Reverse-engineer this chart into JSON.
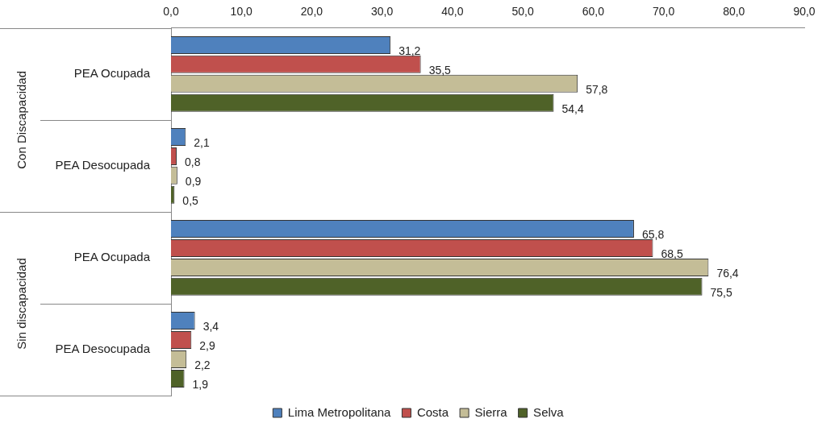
{
  "chart_data": {
    "type": "bar",
    "orientation": "horizontal",
    "categories": [
      "PEA Ocupada",
      "PEA Desocupada",
      "PEA Ocupada",
      "PEA Desocupada"
    ],
    "series": [
      {
        "name": "Lima Metropolitana",
        "color": "#4f81bd",
        "values": [
          31.2,
          2.1,
          65.8,
          3.4
        ],
        "value_labels": [
          "31,2",
          "2,1",
          "65,8",
          "3,4"
        ]
      },
      {
        "name": "Costa",
        "color": "#c0504d",
        "values": [
          35.5,
          0.8,
          68.5,
          2.9
        ],
        "value_labels": [
          "35,5",
          "0,8",
          "68,5",
          "2,9"
        ]
      },
      {
        "name": "Sierra",
        "color": "#c4bd97",
        "values": [
          57.8,
          0.9,
          76.4,
          2.2
        ],
        "value_labels": [
          "57,8",
          "0,9",
          "76,4",
          "2,2"
        ]
      },
      {
        "name": "Selva",
        "color": "#4f6228",
        "values": [
          54.4,
          0.5,
          75.5,
          1.9
        ],
        "value_labels": [
          "54,4",
          "0,5",
          "75,5",
          "1,9"
        ]
      }
    ],
    "xlim": [
      0,
      90
    ],
    "xticks": [
      {
        "value": 0,
        "label": "0,0"
      },
      {
        "value": 10,
        "label": "10,0"
      },
      {
        "value": 20,
        "label": "20,0"
      },
      {
        "value": 30,
        "label": "30,0"
      },
      {
        "value": 40,
        "label": "40,0"
      },
      {
        "value": 50,
        "label": "50,0"
      },
      {
        "value": 60,
        "label": "60,0"
      },
      {
        "value": 70,
        "label": "70,0"
      },
      {
        "value": 80,
        "label": "80,0"
      },
      {
        "value": 90,
        "label": "90,0"
      }
    ],
    "annotations": [
      "Con Discapacidad",
      "Sin discapacidad"
    ],
    "legend": "bottom",
    "grid": false
  }
}
